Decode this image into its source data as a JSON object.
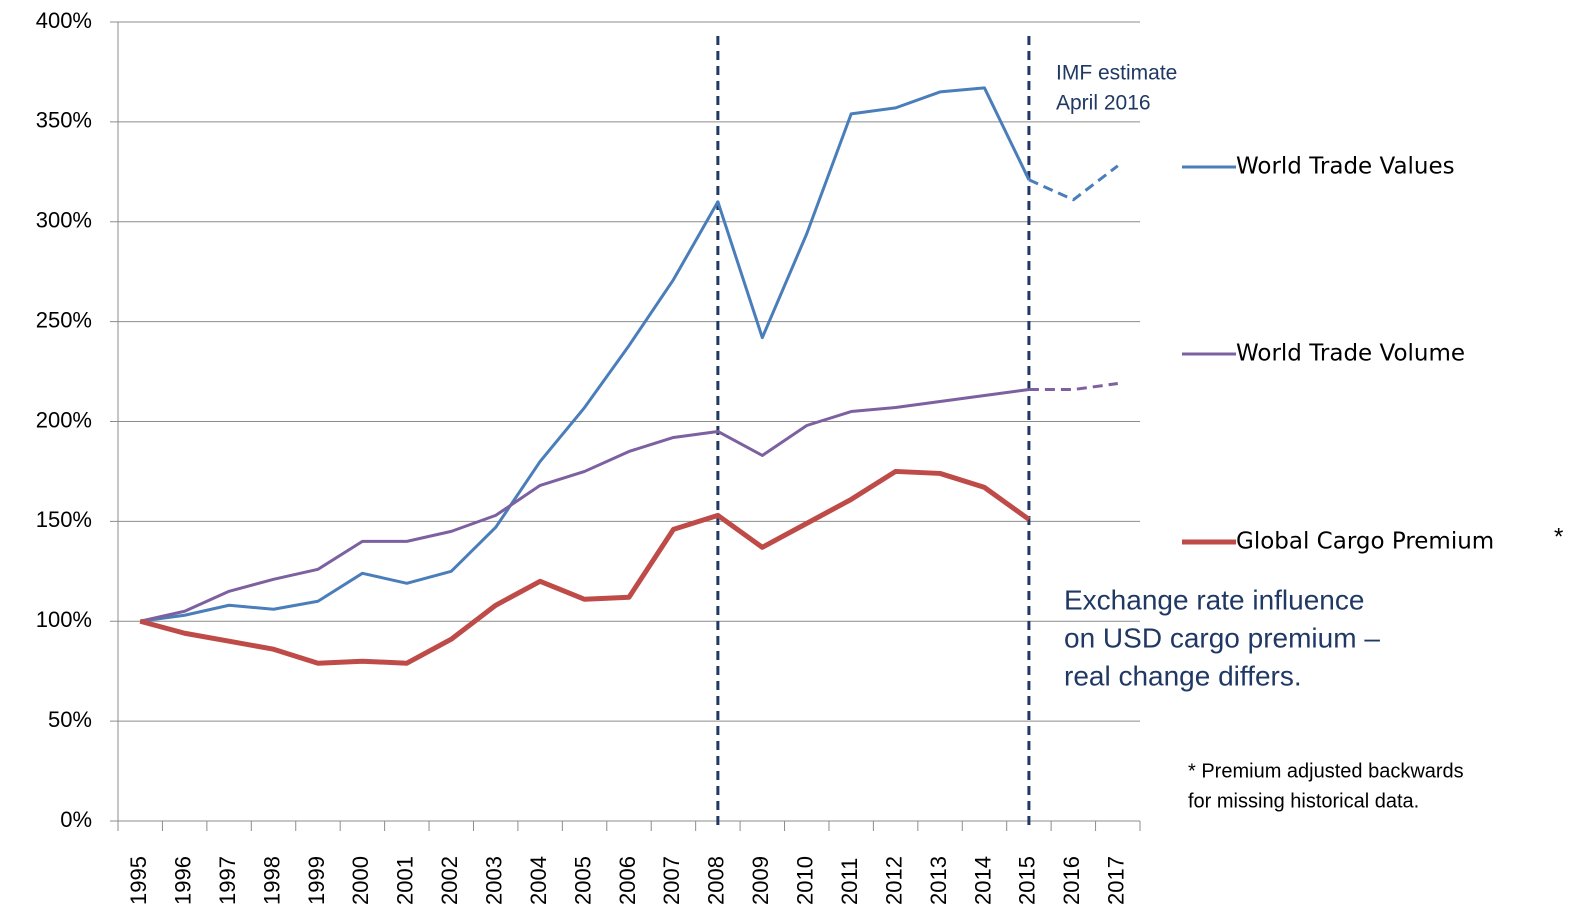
{
  "chart_data": {
    "type": "line",
    "categories": [
      "1995",
      "1996",
      "1997",
      "1998",
      "1999",
      "2000",
      "2001",
      "2002",
      "2003",
      "2004",
      "2005",
      "2006",
      "2007",
      "2008",
      "2009",
      "2010",
      "2011",
      "2012",
      "2013",
      "2014",
      "2015",
      "2016",
      "2017"
    ],
    "series": [
      {
        "name": "World Trade Values",
        "color": "#4a7ebb",
        "width": 3,
        "dashed_from": "2015",
        "values": [
          100,
          103,
          108,
          106,
          110,
          124,
          119,
          125,
          147,
          180,
          207,
          238,
          271,
          310,
          242,
          294,
          354,
          357,
          365,
          367,
          321,
          311,
          328
        ]
      },
      {
        "name": "World Trade Volume",
        "color": "#7d60a0",
        "width": 3,
        "dashed_from": "2015",
        "values": [
          100,
          105,
          115,
          121,
          126,
          140,
          140,
          145,
          153,
          168,
          175,
          185,
          192,
          195,
          183,
          198,
          205,
          207,
          210,
          213,
          216,
          216,
          219
        ]
      },
      {
        "name": "Global Cargo Premium",
        "color": "#be4b48",
        "width": 5,
        "values": [
          100,
          94,
          90,
          86,
          79,
          80,
          79,
          91,
          108,
          120,
          111,
          112,
          146,
          153,
          137,
          149,
          161,
          175,
          174,
          167,
          151,
          null,
          null
        ]
      }
    ],
    "ylim": [
      0,
      400
    ],
    "yticks": [
      {
        "value": 0,
        "label": "0%"
      },
      {
        "value": 50,
        "label": "50%"
      },
      {
        "value": 100,
        "label": "100%"
      },
      {
        "value": 150,
        "label": "150%"
      },
      {
        "value": 200,
        "label": "200%"
      },
      {
        "value": 250,
        "label": "250%"
      },
      {
        "value": 300,
        "label": "300%"
      },
      {
        "value": 350,
        "label": "350%"
      },
      {
        "value": 400,
        "label": "400%"
      }
    ],
    "grid": true,
    "vlines": [
      "2008",
      "2015"
    ],
    "legend_marker": "*",
    "annotations": {
      "imf": [
        "IMF estimate",
        "April 2016"
      ],
      "exchange": [
        "Exchange rate influence",
        "on USD cargo premium –",
        "real change differs."
      ],
      "footnote": [
        "* Premium adjusted backwards",
        "for missing historical data."
      ]
    }
  }
}
